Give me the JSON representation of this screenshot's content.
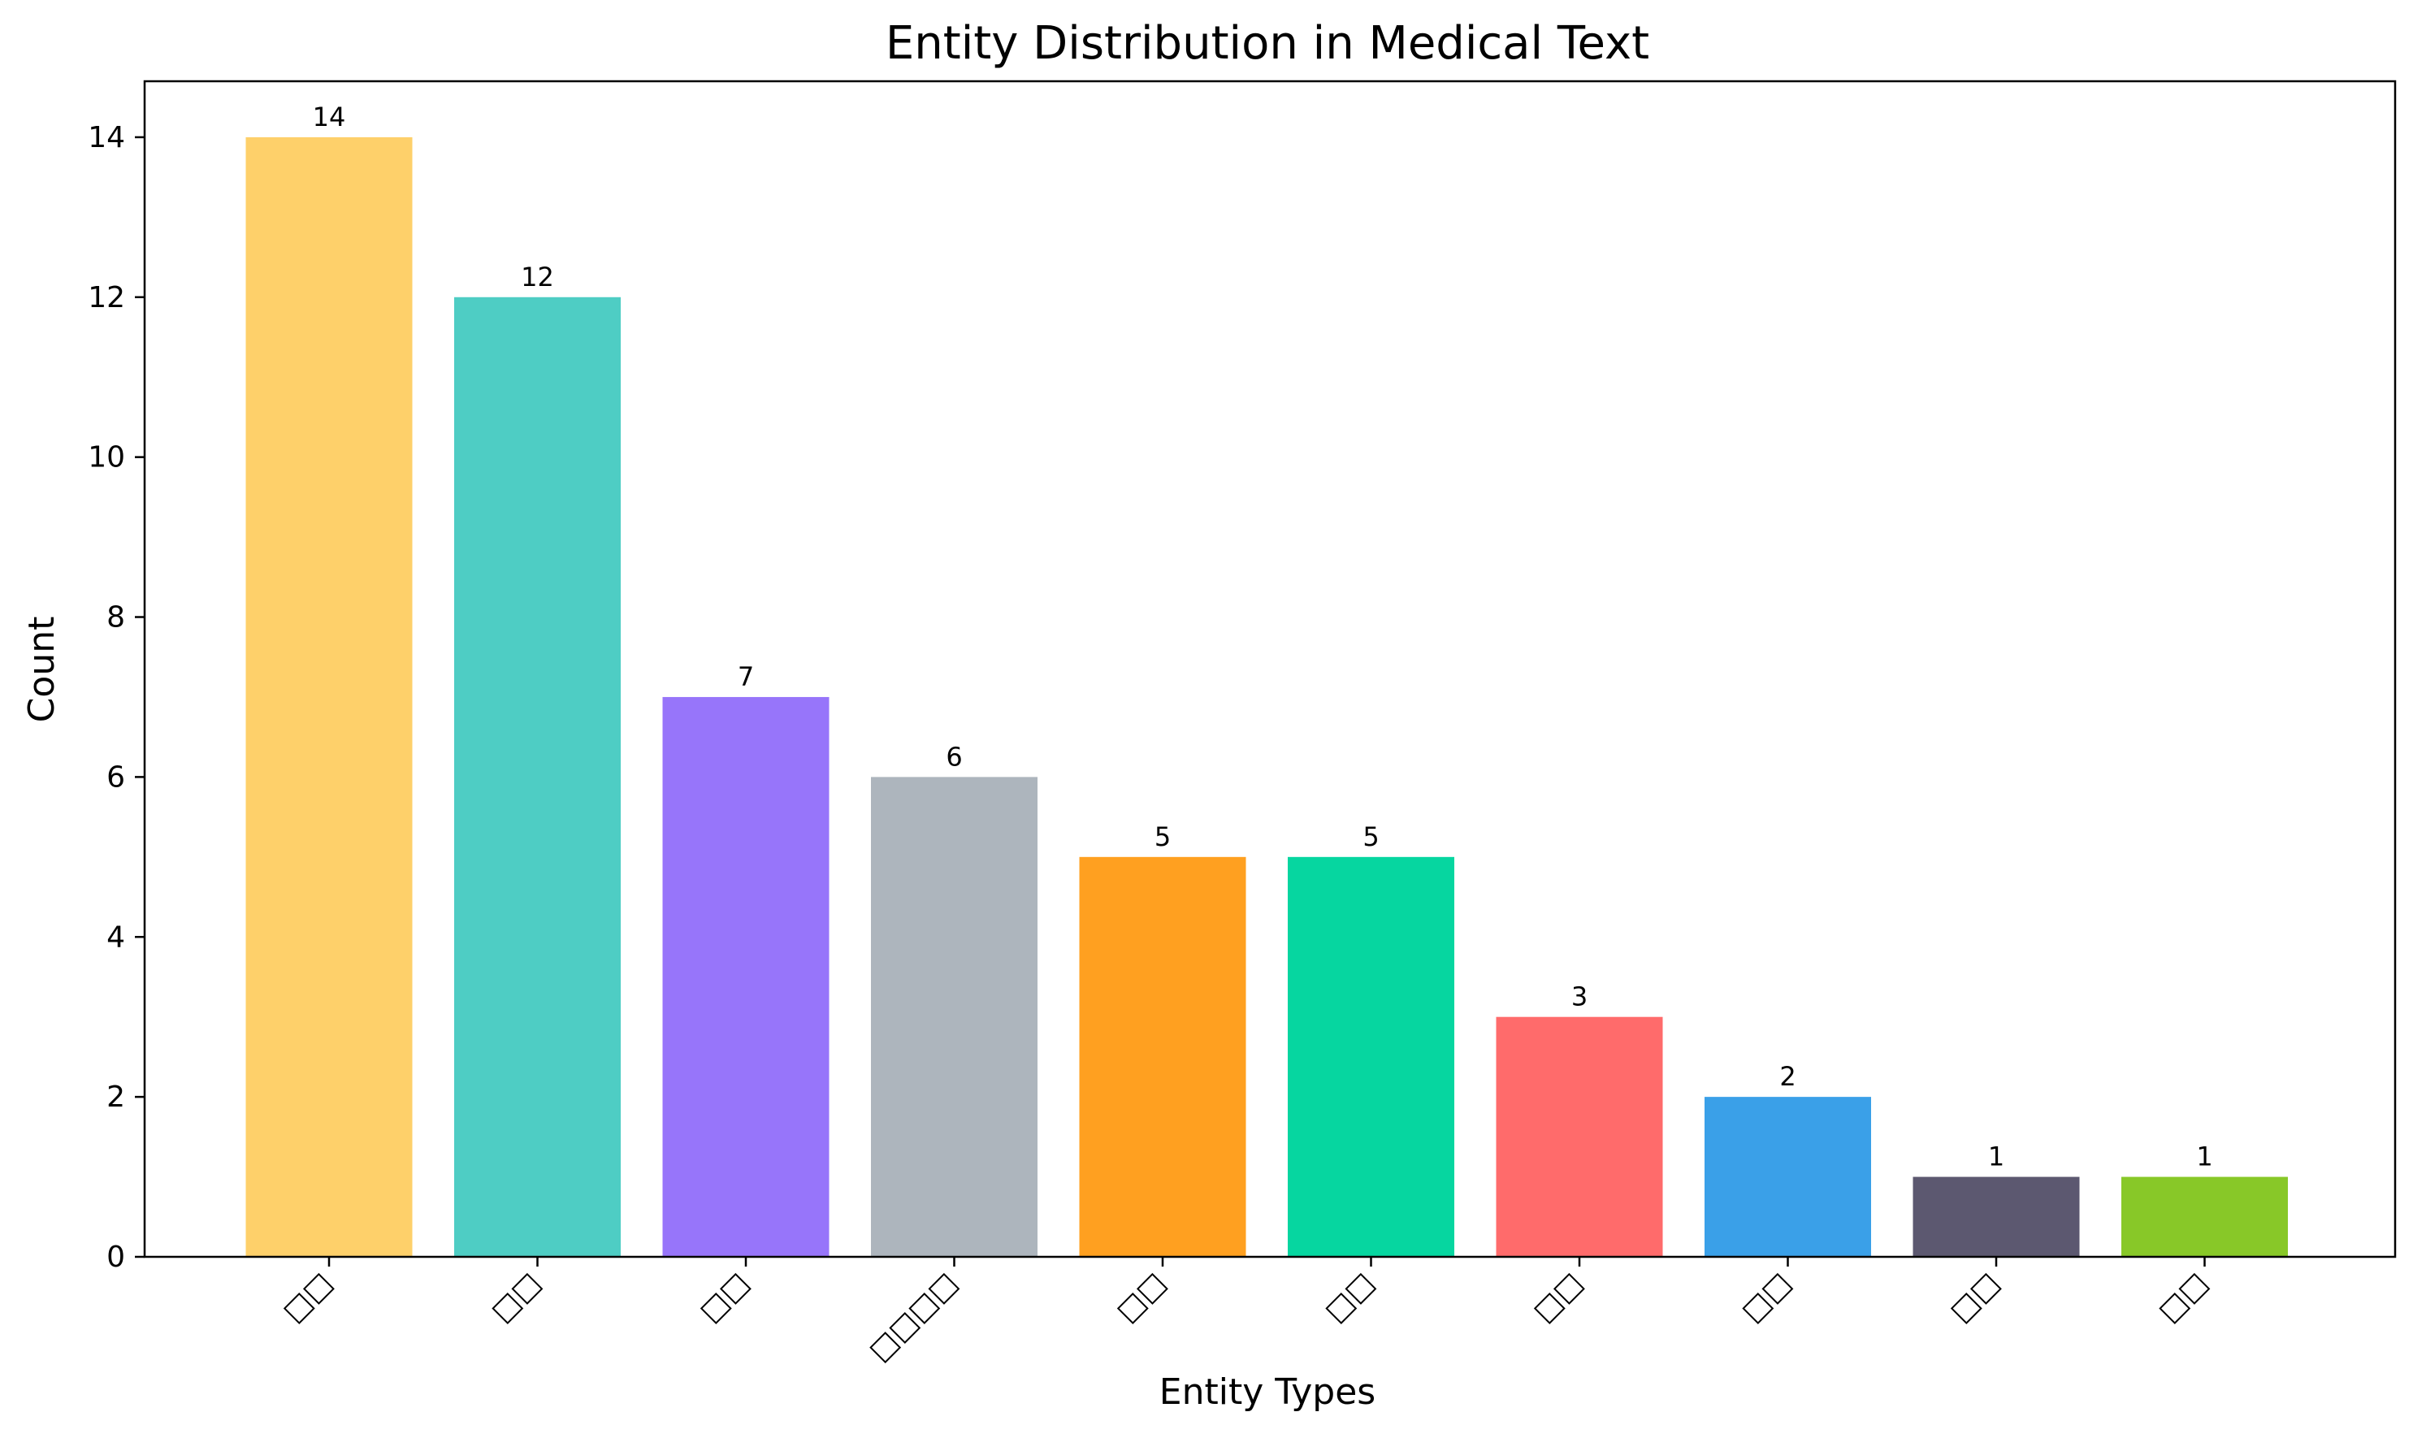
{
  "chart_data": {
    "type": "bar",
    "title": "Entity Distribution in Medical Text",
    "xlabel": "Entity Types",
    "ylabel": "Count",
    "categories": [
      "□□",
      "□□",
      "□□",
      "□□□□",
      "□□",
      "□□",
      "□□",
      "□□",
      "□□",
      "□□"
    ],
    "values": [
      14,
      12,
      7,
      6,
      5,
      5,
      3,
      2,
      1,
      1
    ],
    "colors": [
      "#FED06A",
      "#4ECDC4",
      "#9775FA",
      "#ADB5BD",
      "#FFA020",
      "#06D6A0",
      "#FF6B6B",
      "#3AA0E8",
      "#5C5870",
      "#88C828"
    ],
    "ylim": [
      0,
      14.7
    ],
    "yticks": [
      0,
      2,
      4,
      6,
      8,
      10,
      12,
      14
    ],
    "grid": false,
    "data_labels": true,
    "xtick_rotation": 45
  }
}
